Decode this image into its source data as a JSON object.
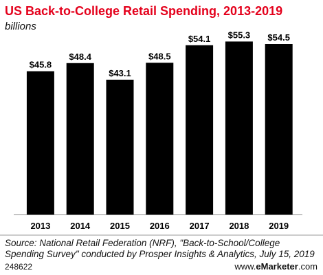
{
  "chart_data": {
    "type": "bar",
    "title": "US Back-to-College Retail Spending, 2013-2019",
    "subtitle": "billions",
    "categories": [
      "2013",
      "2014",
      "2015",
      "2016",
      "2017",
      "2018",
      "2019"
    ],
    "values": [
      45.8,
      48.4,
      43.1,
      48.5,
      54.1,
      55.3,
      54.5
    ],
    "value_labels": [
      "$45.8",
      "$48.4",
      "$43.1",
      "$48.5",
      "$54.1",
      "$55.3",
      "$54.5"
    ],
    "xlabel": "",
    "ylabel": "",
    "ylim": [
      0,
      60
    ],
    "grid": false,
    "legend": "none",
    "bar_color": "#000000",
    "title_color": "#e4011c"
  },
  "footer": {
    "source": "Source: National Retail Federation (NRF), \"Back-to-School/College Spending Survey\" conducted by Prosper Insights & Analytics, July 15, 2019",
    "chart_id": "248622",
    "brand_prefix": "www.",
    "brand_bold": "eMarketer",
    "brand_suffix": ".com"
  }
}
